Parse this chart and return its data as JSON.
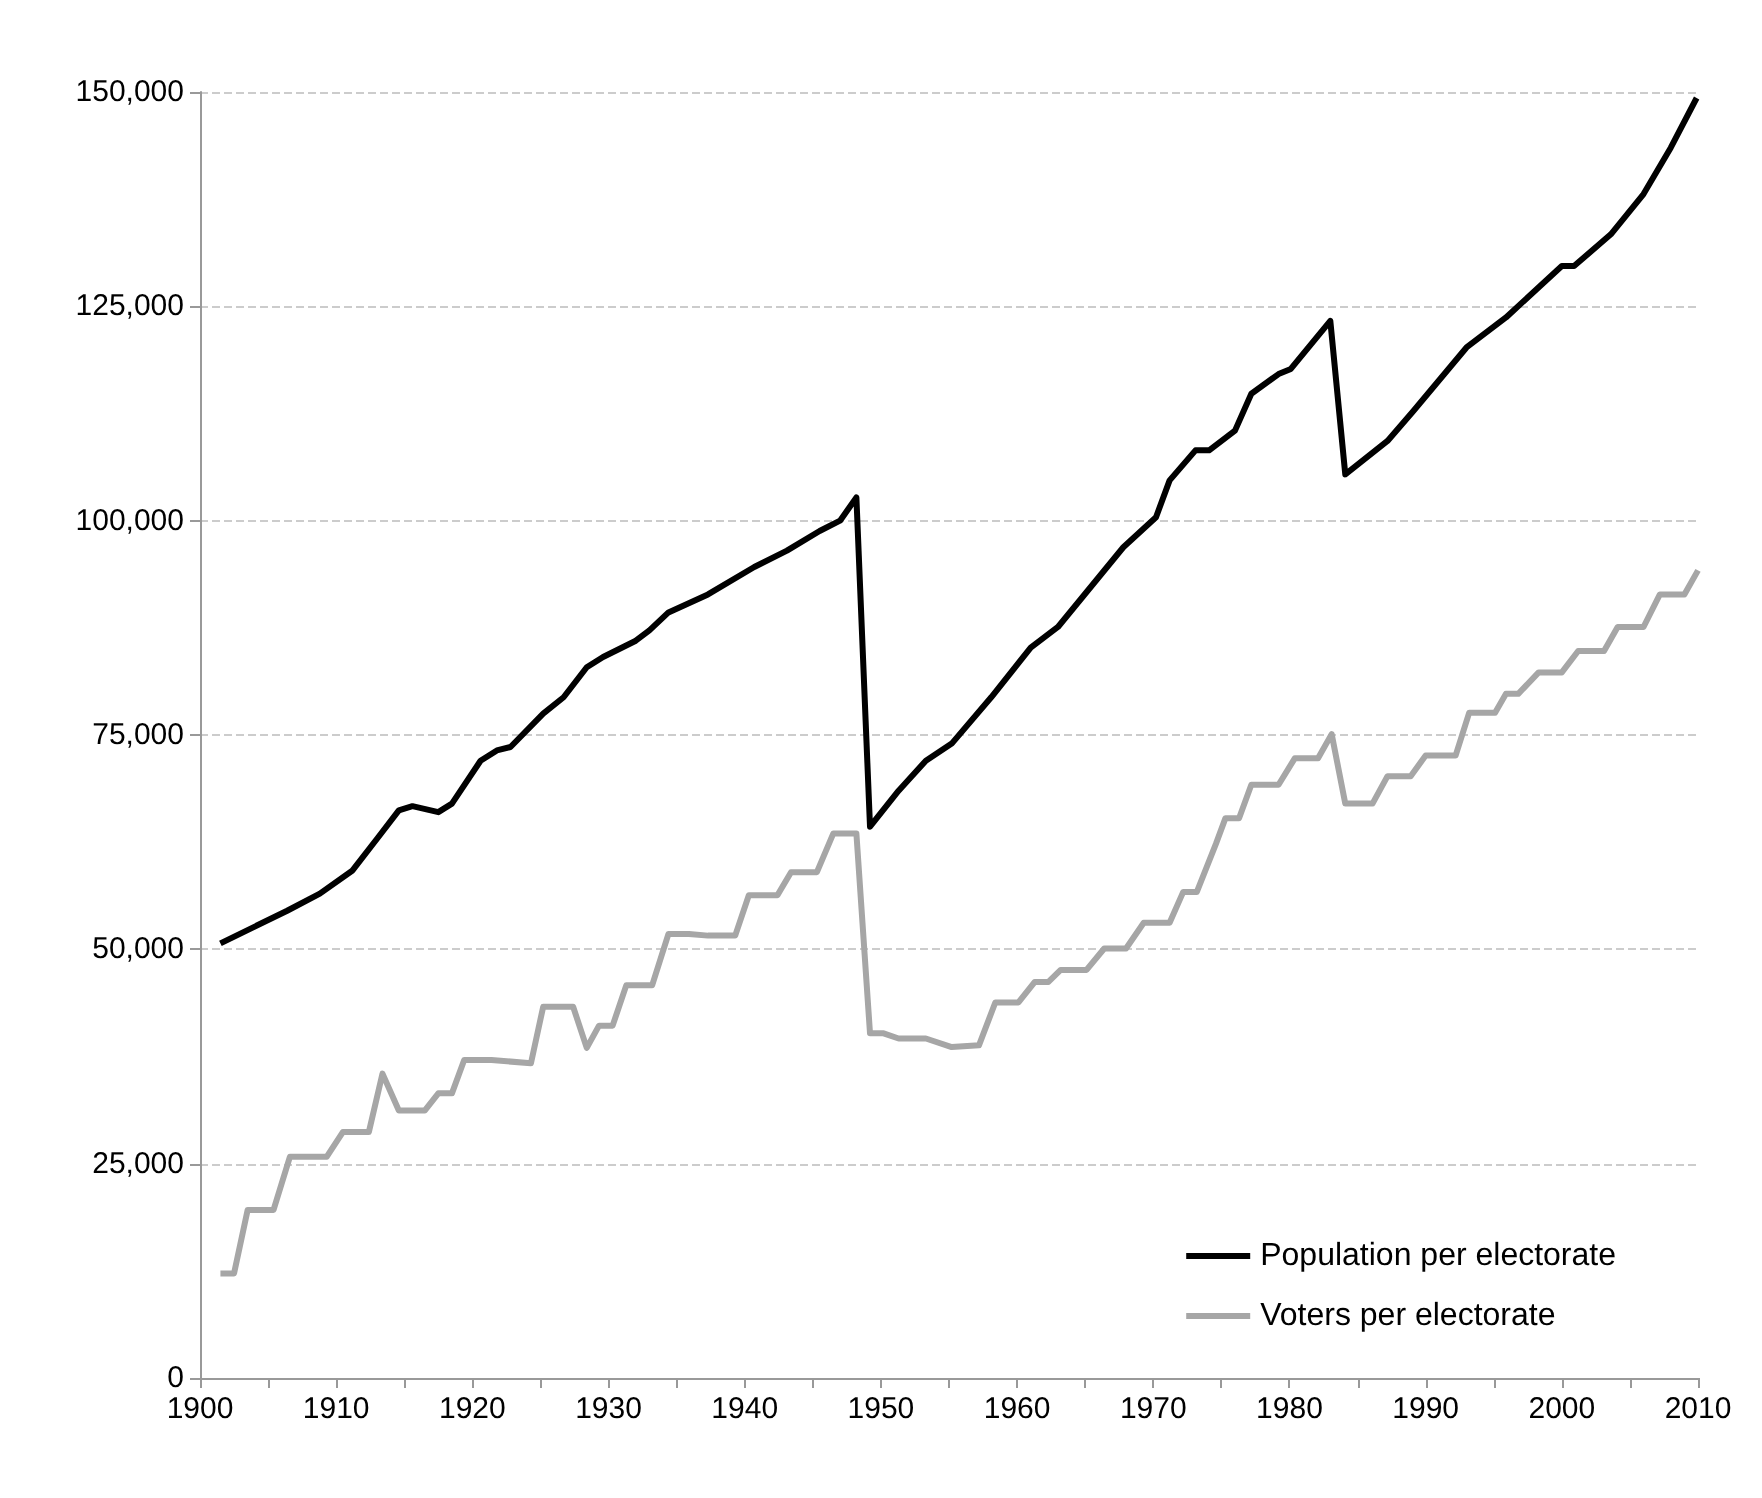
{
  "chart_data": {
    "type": "line",
    "xlim": [
      1900,
      2010
    ],
    "xticks": [
      1900,
      {
        "value": 1905,
        "label": null
      },
      1910,
      {
        "value": 1915,
        "label": null
      },
      1920,
      {
        "value": 1925,
        "label": null
      },
      1930,
      {
        "value": 1935,
        "label": null
      },
      1940,
      {
        "value": 1945,
        "label": null
      },
      1950,
      {
        "value": 1955,
        "label": null
      },
      1960,
      {
        "value": 1965,
        "label": null
      },
      1970,
      {
        "value": 1975,
        "label": null
      },
      1980,
      {
        "value": 1985,
        "label": null
      },
      1990,
      {
        "value": 1995,
        "label": null
      },
      2000,
      {
        "value": 2005,
        "label": null
      },
      2010
    ],
    "ylim": [
      0,
      150000
    ],
    "yticks": [
      {
        "value": 0,
        "label": "0"
      },
      {
        "value": 25000,
        "label": "25,000"
      },
      {
        "value": 50000,
        "label": "50,000"
      },
      {
        "value": 75000,
        "label": "75,000"
      },
      {
        "value": 100000,
        "label": "100,000"
      },
      {
        "value": 125000,
        "label": "125,000"
      },
      {
        "value": 150000,
        "label": "150,000"
      }
    ],
    "grid": "y",
    "legend": "bottom right",
    "marker": "none",
    "line_style": "solid",
    "series": [
      {
        "name": "Population per electorate",
        "color": "#000000",
        "x": [
          1901.5,
          1906.4,
          1908.8,
          1911.2,
          1913.1,
          1914.6,
          1915.6,
          1917.5,
          1918.5,
          1920.6,
          1921.8,
          1922.8,
          1925.2,
          1926.7,
          1928.4,
          1929.6,
          1932,
          1933,
          1934.4,
          1937.3,
          1940.7,
          1943.1,
          1945.5,
          1947,
          1948.2,
          1949.2,
          1951.3,
          1953.3,
          1955.2,
          1958.1,
          1961,
          1963,
          1967.8,
          1970.2,
          1971.2,
          1973.1,
          1974.1,
          1976,
          1977.2,
          1979.2,
          1980.1,
          1983,
          1984.1,
          1987.2,
          1989.1,
          1993,
          1995.9,
          2000,
          2000.9,
          2003.6,
          2006,
          2008,
          2009.9
        ],
        "values": [
          50700,
          54500,
          56500,
          59200,
          63100,
          66200,
          66700,
          66000,
          67000,
          72000,
          73200,
          73600,
          77500,
          79400,
          82900,
          84100,
          86000,
          87200,
          89300,
          91400,
          94600,
          96500,
          98800,
          100000,
          102700,
          64300,
          68500,
          72000,
          74000,
          79400,
          85200,
          87600,
          96900,
          100400,
          104700,
          108200,
          108200,
          110500,
          114800,
          117100,
          117700,
          123300,
          105400,
          109300,
          112800,
          120200,
          123700,
          129700,
          129700,
          133400,
          138100,
          143500,
          149300
        ]
      },
      {
        "name": "Voters per electorate",
        "color": "#a6a6a6",
        "x": [
          1901.5,
          1902.5,
          1903.5,
          1905.4,
          1906.6,
          1909.3,
          1910.5,
          1912.4,
          1913.4,
          1914.6,
          1916.5,
          1917.5,
          1918.5,
          1919.4,
          1921.4,
          1924.3,
          1925.2,
          1927.4,
          1928.4,
          1929.3,
          1930.3,
          1931.3,
          1933.2,
          1934.4,
          1935.9,
          1937.3,
          1939.3,
          1940.3,
          1942.4,
          1943.4,
          1945.3,
          1946.5,
          1948.2,
          1949.2,
          1950.2,
          1951.3,
          1953.3,
          1955.2,
          1957.2,
          1958.4,
          1960.1,
          1961.3,
          1962.3,
          1963.2,
          1965.1,
          1966.4,
          1968,
          1969.3,
          1971.2,
          1972.2,
          1973.2,
          1974.6,
          1975.3,
          1976.3,
          1977.2,
          1979.2,
          1980.4,
          1982.1,
          1983.1,
          1984.1,
          1986.1,
          1987.2,
          1988.9,
          1990,
          1992.2,
          1993.2,
          1995.1,
          1995.9,
          1996.8,
          1998.3,
          2000,
          2001.2,
          2003.1,
          2004.1,
          2006,
          2007.2,
          2009,
          2010
        ],
        "values": [
          12200,
          12200,
          19600,
          19600,
          25800,
          25800,
          28700,
          28700,
          35500,
          31200,
          31200,
          33200,
          33200,
          37100,
          37100,
          36700,
          43300,
          43300,
          38500,
          41100,
          41100,
          45800,
          45800,
          51800,
          51800,
          51600,
          51600,
          56300,
          56300,
          59000,
          59000,
          63500,
          63500,
          40200,
          40200,
          39600,
          39600,
          38600,
          38800,
          43800,
          43800,
          46200,
          46200,
          47600,
          47600,
          50100,
          50100,
          53100,
          53100,
          56700,
          56700,
          62300,
          65300,
          65300,
          69200,
          69200,
          72300,
          72300,
          75100,
          67000,
          67000,
          70200,
          70200,
          72600,
          72600,
          77600,
          77600,
          79800,
          79800,
          82300,
          82300,
          84800,
          84800,
          87600,
          87600,
          91400,
          91400,
          94200
        ]
      }
    ]
  }
}
